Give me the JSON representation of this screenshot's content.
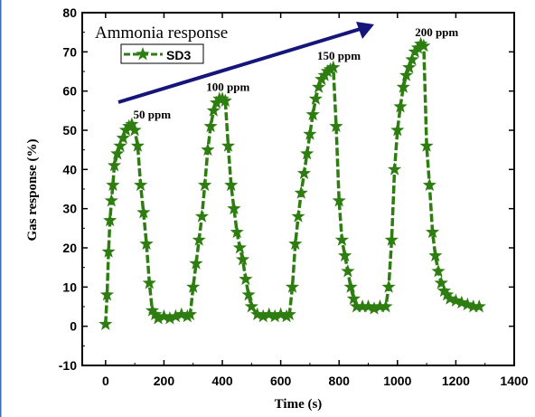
{
  "chart_data": {
    "type": "line",
    "title": "Ammonia response",
    "xlabel": "Time (s)",
    "ylabel": "Gas response (%)",
    "xlim": [
      -80,
      1400
    ],
    "ylim": [
      -10,
      80
    ],
    "x_ticks": [
      0,
      200,
      400,
      600,
      800,
      1000,
      1200,
      1400
    ],
    "y_ticks": [
      -10,
      0,
      10,
      20,
      30,
      40,
      50,
      60,
      70,
      80
    ],
    "grid": false,
    "legend_position": "top-left",
    "series": [
      {
        "name": "SD3",
        "color": "#2e7d11",
        "marker": "star",
        "x": [
          0,
          5,
          10,
          15,
          20,
          25,
          30,
          40,
          50,
          60,
          70,
          80,
          90,
          100,
          110,
          120,
          130,
          140,
          150,
          160,
          170,
          180,
          200,
          220,
          240,
          260,
          280,
          290,
          300,
          310,
          320,
          330,
          340,
          350,
          360,
          370,
          380,
          390,
          400,
          410,
          420,
          430,
          440,
          450,
          460,
          470,
          480,
          490,
          500,
          520,
          540,
          560,
          580,
          600,
          620,
          630,
          640,
          650,
          660,
          670,
          680,
          690,
          700,
          710,
          720,
          730,
          740,
          750,
          760,
          770,
          780,
          790,
          800,
          810,
          820,
          830,
          840,
          850,
          860,
          880,
          900,
          920,
          940,
          960,
          970,
          980,
          990,
          1000,
          1010,
          1020,
          1030,
          1040,
          1050,
          1060,
          1070,
          1080,
          1090,
          1100,
          1110,
          1120,
          1130,
          1140,
          1150,
          1160,
          1170,
          1180,
          1200,
          1220,
          1240,
          1260,
          1280
        ],
        "y": [
          0.5,
          8,
          19,
          27,
          32,
          36,
          41,
          44,
          46,
          48,
          50,
          51,
          51.5,
          50,
          46,
          36,
          29,
          21,
          11,
          4,
          3,
          2,
          2.5,
          2,
          2.5,
          3,
          2.5,
          3,
          10,
          16,
          22,
          28,
          36,
          45,
          51,
          55,
          57,
          58,
          58,
          57.5,
          46,
          36,
          30,
          24,
          20,
          17,
          12,
          8,
          5,
          3,
          2.5,
          3,
          2.5,
          3,
          2.5,
          3,
          10,
          21,
          28,
          34,
          39,
          44,
          49,
          54,
          58,
          61,
          63,
          64,
          65,
          65.5,
          66,
          51,
          32,
          22,
          18,
          14,
          10,
          7,
          5,
          5,
          5,
          4.5,
          5,
          5,
          10,
          22,
          40,
          50,
          56,
          61,
          64,
          66,
          68,
          70,
          71,
          72,
          71.5,
          46,
          36,
          24,
          18,
          14,
          11,
          9,
          8,
          7,
          6.5,
          6,
          5.5,
          5,
          5
        ]
      }
    ],
    "annotations": [
      {
        "text": "50 ppm",
        "x": 95,
        "y": 53
      },
      {
        "text": "100 ppm",
        "x": 345,
        "y": 60
      },
      {
        "text": "150 ppm",
        "x": 725,
        "y": 68
      },
      {
        "text": "200 ppm",
        "x": 1060,
        "y": 74
      }
    ]
  }
}
